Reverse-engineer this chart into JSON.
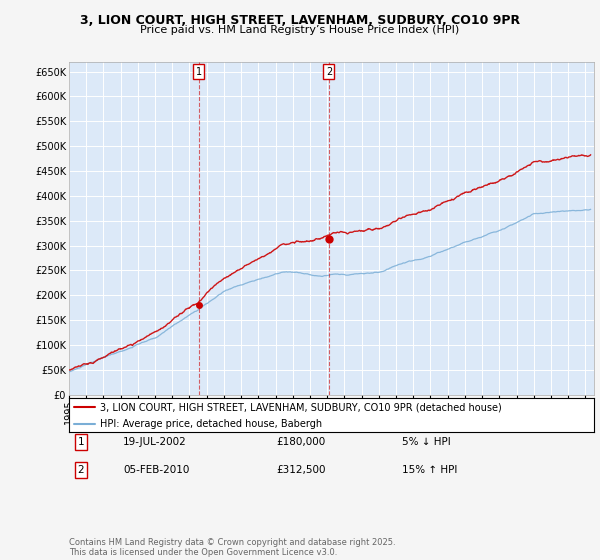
{
  "title": "3, LION COURT, HIGH STREET, LAVENHAM, SUDBURY, CO10 9PR",
  "subtitle": "Price paid vs. HM Land Registry’s House Price Index (HPI)",
  "ytick_values": [
    0,
    50000,
    100000,
    150000,
    200000,
    250000,
    300000,
    350000,
    400000,
    450000,
    500000,
    550000,
    600000,
    650000
  ],
  "ylim": [
    0,
    670000
  ],
  "xlim_start": 1995.0,
  "xlim_end": 2025.5,
  "fig_bg_color": "#f5f5f5",
  "plot_bg_color": "#dce9f8",
  "grid_color": "#ffffff",
  "red_line_color": "#cc0000",
  "blue_line_color": "#7aaed6",
  "transaction1_date": "19-JUL-2002",
  "transaction1_x": 2002.54,
  "transaction1_price": 180000,
  "transaction1_label": "1",
  "transaction1_pct": "5% ↓ HPI",
  "transaction2_date": "05-FEB-2010",
  "transaction2_x": 2010.1,
  "transaction2_price": 312500,
  "transaction2_label": "2",
  "transaction2_pct": "15% ↑ HPI",
  "legend_line1": "3, LION COURT, HIGH STREET, LAVENHAM, SUDBURY, CO10 9PR (detached house)",
  "legend_line2": "HPI: Average price, detached house, Babergh",
  "footer": "Contains HM Land Registry data © Crown copyright and database right 2025.\nThis data is licensed under the Open Government Licence v3.0.",
  "title_fontsize": 9,
  "subtitle_fontsize": 8,
  "tick_fontsize": 7,
  "legend_fontsize": 7,
  "footer_fontsize": 6,
  "table_fontsize": 7.5
}
